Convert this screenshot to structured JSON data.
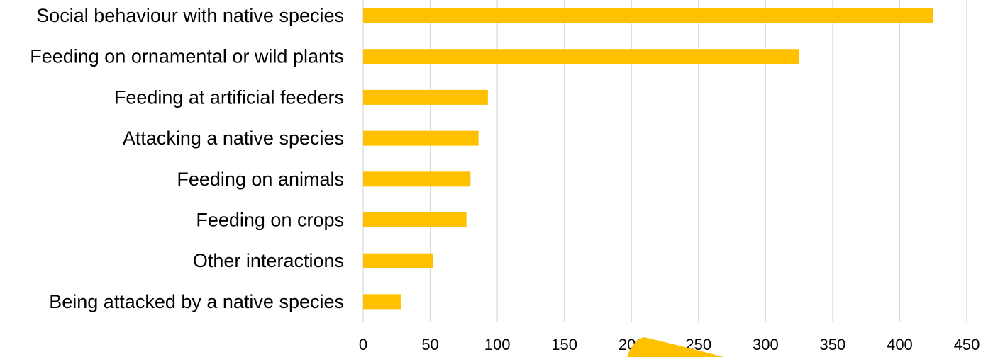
{
  "chart_data": {
    "type": "bar",
    "orientation": "horizontal",
    "categories": [
      "Social behaviour with native species",
      "Feeding on ornamental or wild plants",
      "Feeding at artificial feeders",
      "Attacking a native species",
      "Feeding on animals",
      "Feeding on crops",
      "Other interactions",
      "Being attacked by a native species"
    ],
    "values": [
      425,
      325,
      93,
      86,
      80,
      77,
      52,
      28
    ],
    "xlim": [
      0,
      450
    ],
    "x_ticks": [
      "0",
      "50",
      "100",
      "150",
      "200",
      "250",
      "300",
      "350",
      "400",
      "450"
    ],
    "title": "",
    "xlabel": "",
    "ylabel": "",
    "grid": "vertical",
    "legend": "none",
    "bar_color": "#FFC000",
    "grid_color": "#D9D9D9"
  }
}
